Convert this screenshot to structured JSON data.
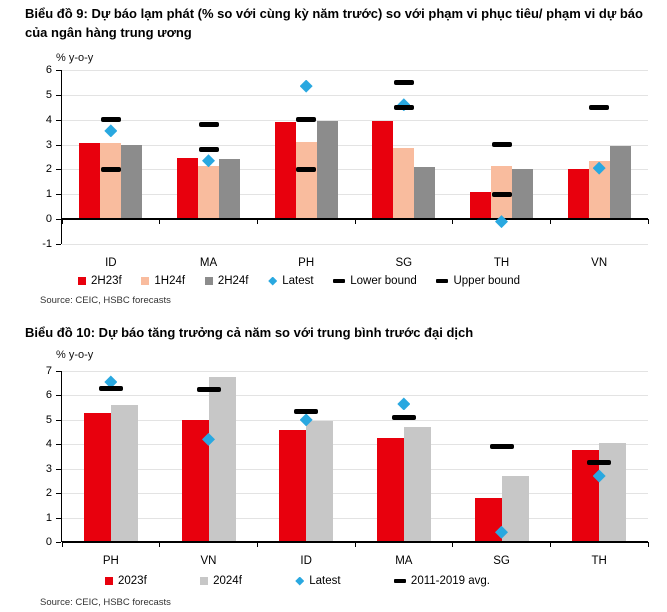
{
  "chart_data": [
    {
      "type": "bar",
      "title": "Biểu đồ 9: Dự báo lạm phát (% so với cùng kỳ năm trước) so với phạm vi phục tiêu/ phạm vi dự báo của ngân hàng trung ương",
      "ylabel": "% y-o-y",
      "ylim": [
        -1,
        6
      ],
      "yticks": [
        6,
        5,
        4,
        3,
        2,
        1,
        0,
        -1
      ],
      "grid": true,
      "legend_position": "bottom",
      "categories": [
        "ID",
        "MA",
        "PH",
        "SG",
        "TH",
        "VN"
      ],
      "series": [
        {
          "name": "2H23f",
          "type": "bar",
          "color": "#e8000d",
          "values": [
            3.05,
            2.45,
            3.9,
            3.95,
            1.1,
            2.0
          ]
        },
        {
          "name": "1H24f",
          "type": "bar",
          "color": "#f9bc9e",
          "values": [
            3.05,
            2.15,
            3.1,
            2.85,
            2.15,
            2.35
          ]
        },
        {
          "name": "2H24f",
          "type": "bar",
          "color": "#8c8c8c",
          "values": [
            3.0,
            2.4,
            3.95,
            2.1,
            2.0,
            2.95
          ]
        },
        {
          "name": "Latest",
          "type": "diamond",
          "color": "#29a8e0",
          "values": [
            3.55,
            2.35,
            5.35,
            4.6,
            -0.1,
            2.05
          ]
        },
        {
          "name": "Lower bound",
          "type": "dash",
          "color": "#000000",
          "values": [
            2.0,
            2.8,
            2.0,
            4.5,
            1.0,
            null
          ]
        },
        {
          "name": "Upper bound",
          "type": "dash",
          "color": "#000000",
          "values": [
            4.0,
            3.8,
            4.0,
            5.5,
            3.0,
            4.5
          ]
        }
      ],
      "source": "Source: CEIC, HSBC forecasts"
    },
    {
      "type": "bar",
      "title": "Biểu đồ 10: Dự báo tăng trưởng cả năm so với trung bình trước đại dịch",
      "ylabel": "% y-o-y",
      "ylim": [
        0,
        7
      ],
      "yticks": [
        7,
        6,
        5,
        4,
        3,
        2,
        1,
        0
      ],
      "grid": true,
      "legend_position": "bottom",
      "categories": [
        "PH",
        "VN",
        "ID",
        "MA",
        "SG",
        "TH"
      ],
      "series": [
        {
          "name": "2023f",
          "type": "bar",
          "color": "#e8000d",
          "values": [
            5.3,
            5.0,
            4.6,
            4.25,
            1.8,
            3.75
          ]
        },
        {
          "name": "2024f",
          "type": "bar",
          "color": "#c7c7c7",
          "values": [
            5.6,
            6.75,
            4.95,
            4.7,
            2.7,
            4.05
          ]
        },
        {
          "name": "Latest",
          "type": "diamond",
          "color": "#29a8e0",
          "values": [
            6.55,
            4.2,
            5.0,
            5.65,
            0.4,
            2.7
          ]
        },
        {
          "name": "2011-2019 avg.",
          "type": "dash",
          "color": "#000000",
          "values": [
            6.3,
            6.25,
            5.35,
            5.1,
            3.9,
            3.25
          ]
        }
      ],
      "source": "Source: CEIC, HSBC forecasts"
    }
  ]
}
